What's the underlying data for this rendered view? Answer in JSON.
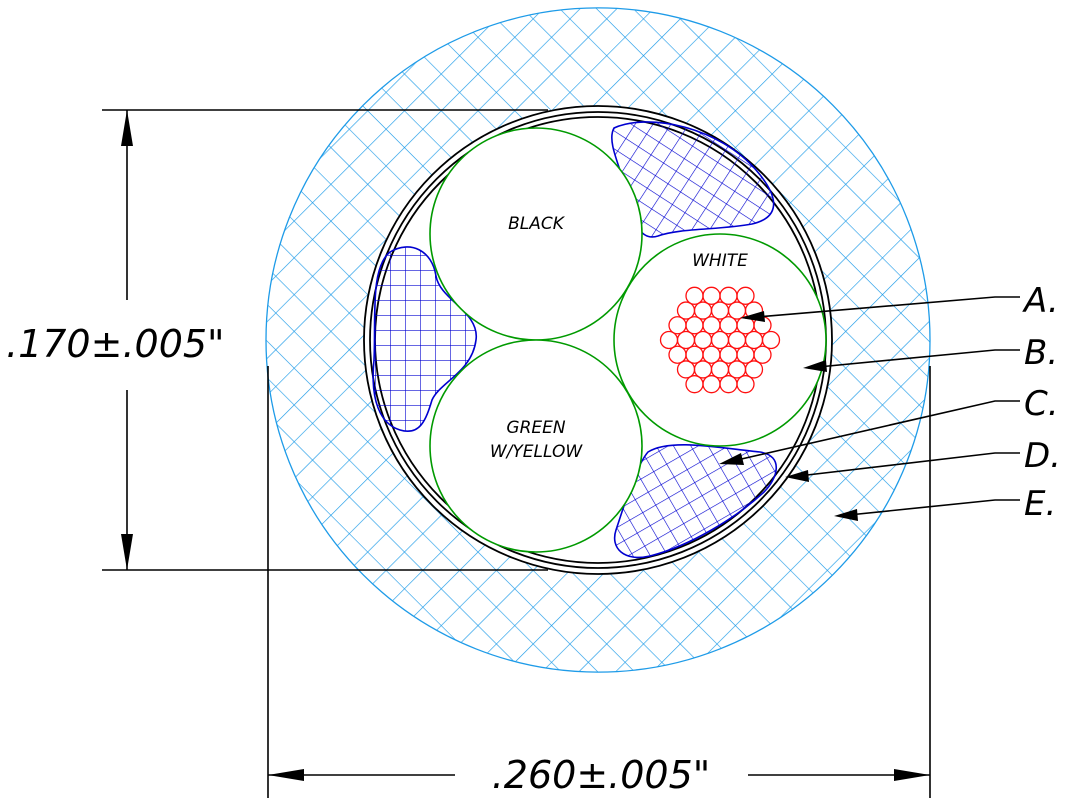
{
  "dimensions": {
    "inner_diameter": ".170±.005\"",
    "outer_diameter": ".260±.005\""
  },
  "conductors": {
    "black": {
      "label": "BLACK"
    },
    "white": {
      "label": "WHITE"
    },
    "green": {
      "line1": "GREEN",
      "line2": "W/YELLOW"
    }
  },
  "callouts": [
    "A.",
    "B.",
    "C.",
    "D.",
    "E."
  ],
  "colors": {
    "jacket_hatch": "#1e9be8",
    "filler_hatch": "#0000d0",
    "conductor_outline": "#009a00",
    "strand": "#ff1010",
    "line": "#000000"
  }
}
